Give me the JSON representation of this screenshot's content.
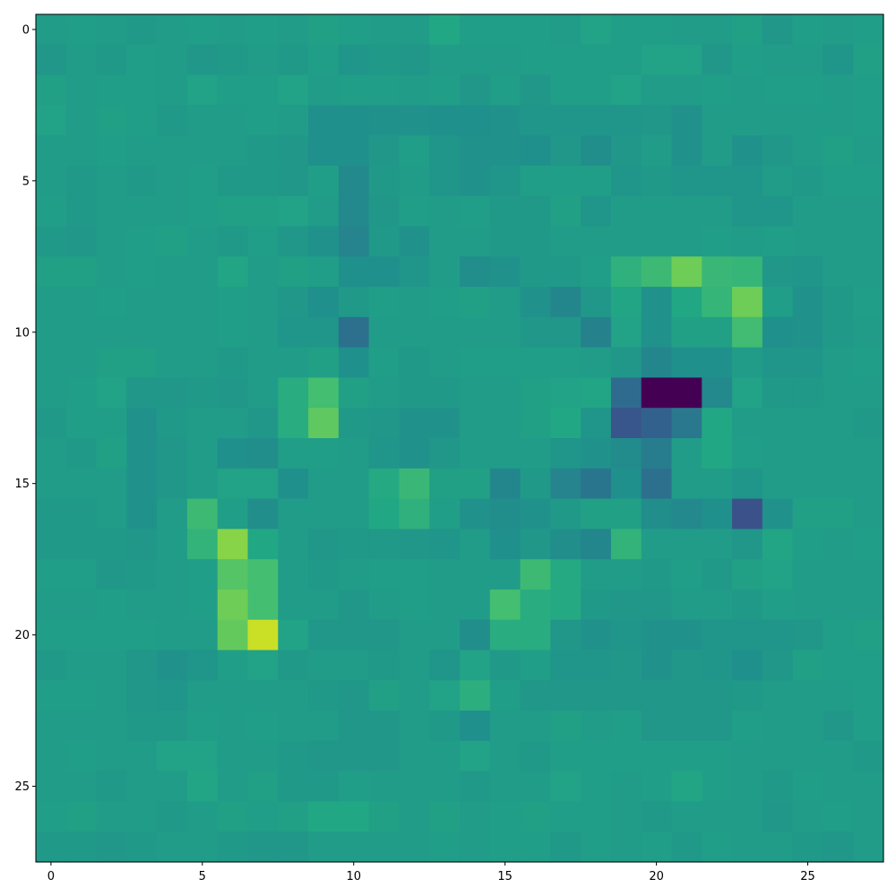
{
  "chart_data": {
    "type": "heatmap",
    "title": "",
    "xlabel": "",
    "ylabel": "",
    "colormap": "viridis",
    "xlim": [
      -0.5,
      27.5
    ],
    "ylim": [
      27.5,
      -0.5
    ],
    "x_ticks": [
      0,
      5,
      10,
      15,
      20,
      25
    ],
    "y_ticks": [
      0,
      5,
      10,
      15,
      20,
      25
    ],
    "x_tick_labels": [
      "0",
      "5",
      "10",
      "15",
      "20",
      "25"
    ],
    "y_tick_labels": [
      "0",
      "5",
      "10",
      "15",
      "20",
      "25"
    ],
    "vmin": 0,
    "vmax": 1,
    "grid": false,
    "legend": "none",
    "values": [
      [
        0.55,
        0.56,
        0.55,
        0.54,
        0.55,
        0.56,
        0.55,
        0.56,
        0.55,
        0.57,
        0.56,
        0.55,
        0.55,
        0.6,
        0.56,
        0.56,
        0.56,
        0.55,
        0.58,
        0.56,
        0.56,
        0.55,
        0.55,
        0.57,
        0.53,
        0.56,
        0.55,
        0.56
      ],
      [
        0.53,
        0.55,
        0.54,
        0.56,
        0.55,
        0.53,
        0.54,
        0.55,
        0.54,
        0.56,
        0.52,
        0.54,
        0.53,
        0.55,
        0.55,
        0.55,
        0.56,
        0.56,
        0.56,
        0.56,
        0.58,
        0.58,
        0.53,
        0.56,
        0.55,
        0.55,
        0.52,
        0.57
      ],
      [
        0.57,
        0.55,
        0.56,
        0.56,
        0.55,
        0.58,
        0.56,
        0.56,
        0.58,
        0.55,
        0.56,
        0.56,
        0.55,
        0.56,
        0.53,
        0.56,
        0.53,
        0.56,
        0.56,
        0.58,
        0.55,
        0.55,
        0.56,
        0.55,
        0.56,
        0.56,
        0.55,
        0.56
      ],
      [
        0.58,
        0.55,
        0.57,
        0.56,
        0.54,
        0.55,
        0.55,
        0.56,
        0.55,
        0.5,
        0.5,
        0.51,
        0.51,
        0.5,
        0.5,
        0.51,
        0.52,
        0.52,
        0.52,
        0.52,
        0.53,
        0.51,
        0.55,
        0.55,
        0.55,
        0.55,
        0.55,
        0.56
      ],
      [
        0.55,
        0.55,
        0.56,
        0.55,
        0.55,
        0.55,
        0.55,
        0.54,
        0.53,
        0.5,
        0.5,
        0.53,
        0.56,
        0.52,
        0.51,
        0.51,
        0.5,
        0.53,
        0.49,
        0.53,
        0.55,
        0.51,
        0.55,
        0.51,
        0.53,
        0.55,
        0.57,
        0.55
      ],
      [
        0.55,
        0.54,
        0.55,
        0.54,
        0.55,
        0.56,
        0.54,
        0.54,
        0.53,
        0.56,
        0.47,
        0.54,
        0.55,
        0.52,
        0.51,
        0.52,
        0.56,
        0.56,
        0.56,
        0.52,
        0.54,
        0.52,
        0.52,
        0.52,
        0.55,
        0.54,
        0.56,
        0.56
      ],
      [
        0.56,
        0.54,
        0.55,
        0.55,
        0.55,
        0.56,
        0.57,
        0.57,
        0.58,
        0.55,
        0.47,
        0.53,
        0.56,
        0.55,
        0.56,
        0.54,
        0.54,
        0.57,
        0.52,
        0.55,
        0.55,
        0.55,
        0.55,
        0.52,
        0.52,
        0.55,
        0.55,
        0.55
      ],
      [
        0.54,
        0.53,
        0.55,
        0.56,
        0.57,
        0.55,
        0.54,
        0.56,
        0.53,
        0.51,
        0.45,
        0.54,
        0.51,
        0.55,
        0.55,
        0.54,
        0.54,
        0.55,
        0.55,
        0.55,
        0.55,
        0.55,
        0.56,
        0.55,
        0.56,
        0.55,
        0.55,
        0.55
      ],
      [
        0.57,
        0.57,
        0.55,
        0.56,
        0.55,
        0.55,
        0.59,
        0.55,
        0.57,
        0.56,
        0.5,
        0.5,
        0.52,
        0.55,
        0.49,
        0.51,
        0.54,
        0.54,
        0.56,
        0.64,
        0.68,
        0.78,
        0.67,
        0.66,
        0.53,
        0.52,
        0.55,
        0.55
      ],
      [
        0.55,
        0.55,
        0.56,
        0.55,
        0.55,
        0.55,
        0.56,
        0.55,
        0.53,
        0.5,
        0.54,
        0.56,
        0.55,
        0.56,
        0.57,
        0.55,
        0.51,
        0.46,
        0.53,
        0.59,
        0.51,
        0.6,
        0.66,
        0.78,
        0.56,
        0.51,
        0.54,
        0.56
      ],
      [
        0.55,
        0.55,
        0.55,
        0.55,
        0.55,
        0.55,
        0.56,
        0.55,
        0.52,
        0.52,
        0.37,
        0.55,
        0.55,
        0.55,
        0.55,
        0.55,
        0.53,
        0.53,
        0.44,
        0.58,
        0.51,
        0.57,
        0.57,
        0.69,
        0.5,
        0.51,
        0.54,
        0.55
      ],
      [
        0.55,
        0.55,
        0.57,
        0.57,
        0.55,
        0.55,
        0.54,
        0.55,
        0.55,
        0.57,
        0.5,
        0.56,
        0.54,
        0.55,
        0.56,
        0.56,
        0.56,
        0.56,
        0.55,
        0.53,
        0.46,
        0.5,
        0.5,
        0.55,
        0.52,
        0.52,
        0.55,
        0.56
      ],
      [
        0.55,
        0.56,
        0.58,
        0.53,
        0.53,
        0.54,
        0.53,
        0.55,
        0.62,
        0.7,
        0.57,
        0.55,
        0.54,
        0.54,
        0.55,
        0.55,
        0.57,
        0.58,
        0.59,
        0.35,
        0.0,
        0.0,
        0.47,
        0.58,
        0.54,
        0.54,
        0.55,
        0.55
      ],
      [
        0.54,
        0.56,
        0.56,
        0.51,
        0.54,
        0.55,
        0.55,
        0.53,
        0.62,
        0.75,
        0.54,
        0.53,
        0.51,
        0.51,
        0.55,
        0.55,
        0.57,
        0.6,
        0.52,
        0.27,
        0.31,
        0.4,
        0.6,
        0.55,
        0.55,
        0.55,
        0.55,
        0.54
      ],
      [
        0.55,
        0.54,
        0.57,
        0.51,
        0.53,
        0.55,
        0.5,
        0.49,
        0.56,
        0.56,
        0.55,
        0.52,
        0.51,
        0.53,
        0.55,
        0.55,
        0.55,
        0.52,
        0.51,
        0.48,
        0.42,
        0.55,
        0.6,
        0.56,
        0.55,
        0.55,
        0.55,
        0.55
      ],
      [
        0.55,
        0.55,
        0.55,
        0.51,
        0.53,
        0.55,
        0.58,
        0.58,
        0.5,
        0.55,
        0.55,
        0.61,
        0.67,
        0.57,
        0.57,
        0.46,
        0.54,
        0.45,
        0.39,
        0.5,
        0.37,
        0.55,
        0.55,
        0.52,
        0.55,
        0.55,
        0.55,
        0.55
      ],
      [
        0.54,
        0.54,
        0.55,
        0.51,
        0.55,
        0.68,
        0.56,
        0.49,
        0.55,
        0.55,
        0.55,
        0.6,
        0.64,
        0.56,
        0.51,
        0.49,
        0.51,
        0.54,
        0.57,
        0.57,
        0.49,
        0.47,
        0.5,
        0.25,
        0.51,
        0.57,
        0.57,
        0.55
      ],
      [
        0.54,
        0.54,
        0.54,
        0.53,
        0.55,
        0.65,
        0.82,
        0.6,
        0.55,
        0.53,
        0.54,
        0.54,
        0.53,
        0.52,
        0.55,
        0.5,
        0.53,
        0.49,
        0.46,
        0.65,
        0.55,
        0.55,
        0.55,
        0.53,
        0.59,
        0.56,
        0.55,
        0.56
      ],
      [
        0.56,
        0.56,
        0.53,
        0.54,
        0.55,
        0.56,
        0.73,
        0.7,
        0.55,
        0.54,
        0.55,
        0.56,
        0.56,
        0.55,
        0.55,
        0.55,
        0.68,
        0.61,
        0.55,
        0.55,
        0.54,
        0.56,
        0.54,
        0.57,
        0.58,
        0.55,
        0.55,
        0.55
      ],
      [
        0.55,
        0.55,
        0.56,
        0.55,
        0.55,
        0.56,
        0.78,
        0.7,
        0.55,
        0.55,
        0.53,
        0.55,
        0.56,
        0.55,
        0.55,
        0.7,
        0.62,
        0.61,
        0.54,
        0.53,
        0.53,
        0.55,
        0.55,
        0.54,
        0.56,
        0.55,
        0.55,
        0.55
      ],
      [
        0.56,
        0.56,
        0.56,
        0.56,
        0.55,
        0.55,
        0.76,
        0.92,
        0.58,
        0.53,
        0.53,
        0.53,
        0.55,
        0.55,
        0.49,
        0.62,
        0.62,
        0.53,
        0.51,
        0.52,
        0.51,
        0.51,
        0.52,
        0.52,
        0.52,
        0.53,
        0.56,
        0.57
      ],
      [
        0.54,
        0.55,
        0.55,
        0.53,
        0.51,
        0.52,
        0.56,
        0.58,
        0.54,
        0.55,
        0.55,
        0.54,
        0.55,
        0.52,
        0.58,
        0.54,
        0.56,
        0.52,
        0.52,
        0.53,
        0.51,
        0.53,
        0.52,
        0.5,
        0.53,
        0.57,
        0.56,
        0.56
      ],
      [
        0.56,
        0.56,
        0.55,
        0.53,
        0.52,
        0.55,
        0.55,
        0.55,
        0.55,
        0.54,
        0.53,
        0.57,
        0.55,
        0.58,
        0.63,
        0.56,
        0.53,
        0.53,
        0.53,
        0.53,
        0.53,
        0.53,
        0.53,
        0.54,
        0.55,
        0.55,
        0.55,
        0.56
      ],
      [
        0.55,
        0.55,
        0.55,
        0.54,
        0.54,
        0.56,
        0.55,
        0.56,
        0.55,
        0.55,
        0.53,
        0.53,
        0.55,
        0.54,
        0.5,
        0.55,
        0.55,
        0.57,
        0.55,
        0.56,
        0.53,
        0.53,
        0.53,
        0.56,
        0.55,
        0.55,
        0.53,
        0.56
      ],
      [
        0.55,
        0.56,
        0.55,
        0.55,
        0.58,
        0.58,
        0.55,
        0.55,
        0.54,
        0.53,
        0.53,
        0.53,
        0.55,
        0.55,
        0.58,
        0.55,
        0.54,
        0.56,
        0.56,
        0.56,
        0.56,
        0.56,
        0.56,
        0.55,
        0.55,
        0.55,
        0.55,
        0.54
      ],
      [
        0.55,
        0.55,
        0.54,
        0.55,
        0.55,
        0.59,
        0.55,
        0.57,
        0.54,
        0.54,
        0.56,
        0.55,
        0.55,
        0.55,
        0.54,
        0.55,
        0.55,
        0.58,
        0.56,
        0.55,
        0.56,
        0.59,
        0.56,
        0.55,
        0.54,
        0.56,
        0.55,
        0.55
      ],
      [
        0.56,
        0.57,
        0.55,
        0.55,
        0.54,
        0.55,
        0.57,
        0.56,
        0.57,
        0.6,
        0.6,
        0.57,
        0.55,
        0.57,
        0.55,
        0.56,
        0.57,
        0.56,
        0.56,
        0.55,
        0.54,
        0.55,
        0.55,
        0.55,
        0.53,
        0.55,
        0.56,
        0.55
      ],
      [
        0.54,
        0.54,
        0.53,
        0.54,
        0.55,
        0.55,
        0.54,
        0.53,
        0.53,
        0.55,
        0.55,
        0.55,
        0.55,
        0.56,
        0.55,
        0.56,
        0.56,
        0.54,
        0.56,
        0.55,
        0.56,
        0.54,
        0.56,
        0.55,
        0.55,
        0.54,
        0.53,
        0.55
      ]
    ]
  }
}
